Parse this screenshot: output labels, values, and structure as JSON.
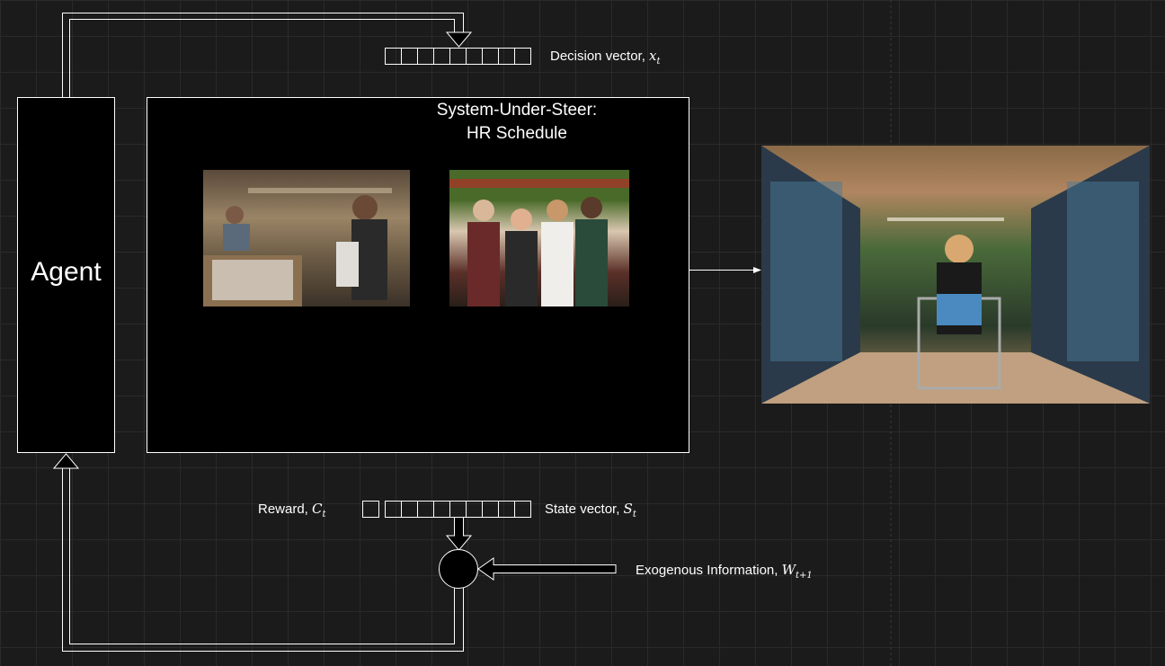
{
  "agent": {
    "label": "Agent"
  },
  "system": {
    "title_line1": "System-Under-Steer:",
    "title_line2": "HR Schedule"
  },
  "decision": {
    "label": "Decision vector, ",
    "symbol": "x",
    "subscript": "t",
    "cells": 9
  },
  "reward": {
    "label": "Reward, ",
    "symbol": "C",
    "subscript": "t"
  },
  "state": {
    "label": "State vector, ",
    "symbol": "S",
    "subscript": "t",
    "cells": 9
  },
  "exogenous": {
    "label": "Exogenous Information, ",
    "symbol": "W",
    "subscript": "t+1"
  },
  "images": {
    "checkout": "checkout-clerk-photo",
    "staff": "grocery-staff-group-photo",
    "aisle": "shopper-in-frozen-aisle-photo"
  },
  "colors": {
    "background": "#1b1b1b",
    "grid": "#2a2a2a",
    "stroke": "#ffffff"
  }
}
